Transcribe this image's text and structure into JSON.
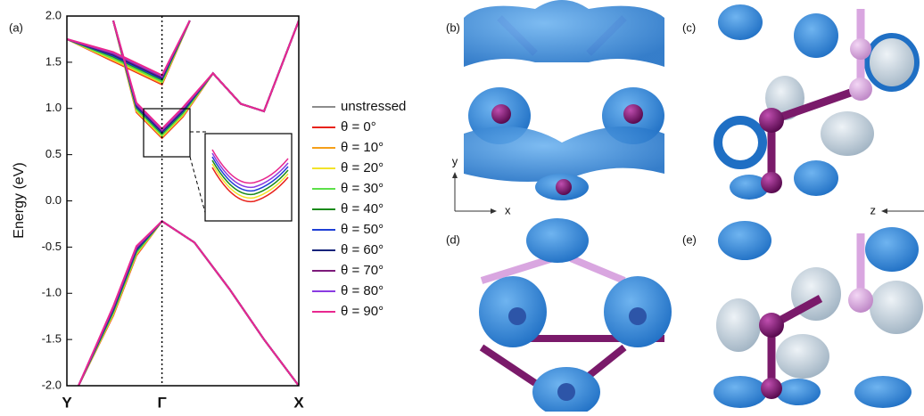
{
  "chart_data": {
    "type": "line",
    "y_label": "Energy (eV)",
    "panel_label": "(a)",
    "xlim": [
      0,
      1
    ],
    "xticks": [
      {
        "value": 0,
        "label": "Y"
      },
      {
        "value": 0.41,
        "label": "Γ"
      },
      {
        "value": 1,
        "label": "X"
      }
    ],
    "ylim": [
      -2,
      2
    ],
    "yticks": [
      {
        "value": 2,
        "label": "2.0"
      },
      1.5,
      {
        "value": 1,
        "label": "1.0"
      },
      0.5,
      {
        "value": 0,
        "label": "0.0"
      },
      -0.5,
      {
        "value": -1,
        "label": "-1.0"
      },
      -1.5,
      {
        "value": -2,
        "label": "-2.0"
      }
    ],
    "x": [
      0,
      0.2,
      0.41,
      0.53,
      null,
      0.2,
      0.3,
      0.41,
      0.5,
      0.63,
      0.75,
      0.85,
      1,
      null,
      0.05,
      0.2,
      0.3,
      0.41,
      0.55,
      0.7,
      0.85,
      1
    ],
    "series": [
      {
        "name": "unstressed",
        "color": "#8c8c8c",
        "values": [
          1.75,
          1.55,
          1.3,
          1.95,
          null,
          1.95,
          1.0,
          0.72,
          0.95,
          1.38,
          1.05,
          0.97,
          1.95,
          null,
          -2.0,
          -1.2,
          -0.55,
          -0.22,
          -0.45,
          -0.95,
          -1.5,
          -2.0
        ]
      },
      {
        "name": "θ = 0°",
        "color": "#e8221b",
        "values": [
          1.75,
          1.51,
          1.26,
          1.95,
          null,
          1.95,
          0.96,
          0.68,
          0.91,
          1.38,
          1.05,
          0.97,
          1.95,
          null,
          -2.0,
          -1.24,
          -0.59,
          -0.22,
          -0.45,
          -0.95,
          -1.5,
          -2.0
        ]
      },
      {
        "name": "θ = 10°",
        "color": "#f5a01a",
        "values": [
          1.75,
          1.52,
          1.27,
          1.95,
          null,
          1.95,
          0.97,
          0.69,
          0.92,
          1.38,
          1.05,
          0.97,
          1.95,
          null,
          -2.0,
          -1.23,
          -0.58,
          -0.22,
          -0.45,
          -0.95,
          -1.5,
          -2.0
        ]
      },
      {
        "name": "θ = 20°",
        "color": "#f2e32a",
        "values": [
          1.75,
          1.53,
          1.28,
          1.95,
          null,
          1.95,
          0.98,
          0.7,
          0.93,
          1.38,
          1.05,
          0.97,
          1.95,
          null,
          -2.0,
          -1.22,
          -0.57,
          -0.22,
          -0.45,
          -0.95,
          -1.5,
          -2.0
        ]
      },
      {
        "name": "θ = 30°",
        "color": "#5de04a",
        "values": [
          1.75,
          1.54,
          1.29,
          1.95,
          null,
          1.95,
          0.99,
          0.71,
          0.94,
          1.38,
          1.05,
          0.97,
          1.95,
          null,
          -2.0,
          -1.21,
          -0.56,
          -0.22,
          -0.45,
          -0.95,
          -1.5,
          -2.0
        ]
      },
      {
        "name": "θ = 40°",
        "color": "#1a8a1a",
        "values": [
          1.75,
          1.56,
          1.31,
          1.95,
          null,
          1.95,
          1.01,
          0.73,
          0.96,
          1.38,
          1.05,
          0.97,
          1.95,
          null,
          -2.0,
          -1.19,
          -0.54,
          -0.22,
          -0.45,
          -0.95,
          -1.5,
          -2.0
        ]
      },
      {
        "name": "θ = 50°",
        "color": "#1f3fd6",
        "values": [
          1.75,
          1.57,
          1.32,
          1.95,
          null,
          1.95,
          1.02,
          0.74,
          0.97,
          1.38,
          1.05,
          0.97,
          1.95,
          null,
          -2.0,
          -1.18,
          -0.53,
          -0.22,
          -0.45,
          -0.95,
          -1.5,
          -2.0
        ]
      },
      {
        "name": "θ = 60°",
        "color": "#14237a",
        "values": [
          1.75,
          1.58,
          1.33,
          1.95,
          null,
          1.95,
          1.03,
          0.75,
          0.98,
          1.38,
          1.05,
          0.97,
          1.95,
          null,
          -2.0,
          -1.17,
          -0.52,
          -0.22,
          -0.45,
          -0.95,
          -1.5,
          -2.0
        ]
      },
      {
        "name": "θ = 70°",
        "color": "#7d1a7a",
        "values": [
          1.75,
          1.59,
          1.34,
          1.95,
          null,
          1.95,
          1.04,
          0.76,
          0.99,
          1.38,
          1.05,
          0.97,
          1.95,
          null,
          -2.0,
          -1.16,
          -0.51,
          -0.22,
          -0.45,
          -0.95,
          -1.5,
          -2.0
        ]
      },
      {
        "name": "θ = 80°",
        "color": "#8a3be2",
        "values": [
          1.75,
          1.6,
          1.35,
          1.95,
          null,
          1.95,
          1.05,
          0.77,
          1.0,
          1.38,
          1.05,
          0.97,
          1.95,
          null,
          -2.0,
          -1.15,
          -0.5,
          -0.22,
          -0.45,
          -0.95,
          -1.5,
          -2.0
        ]
      },
      {
        "name": "θ = 90°",
        "color": "#e8288f",
        "values": [
          1.75,
          1.61,
          1.36,
          1.95,
          null,
          1.95,
          1.06,
          0.78,
          1.01,
          1.38,
          1.05,
          0.97,
          1.95,
          null,
          -2.0,
          -1.14,
          -0.49,
          -0.22,
          -0.45,
          -0.95,
          -1.5,
          -2.0
        ]
      }
    ]
  },
  "panels": {
    "b": "(b)",
    "c": "(c)",
    "d": "(d)",
    "e": "(e)"
  },
  "axes": {
    "x": "x",
    "y": "y",
    "z": "z"
  }
}
